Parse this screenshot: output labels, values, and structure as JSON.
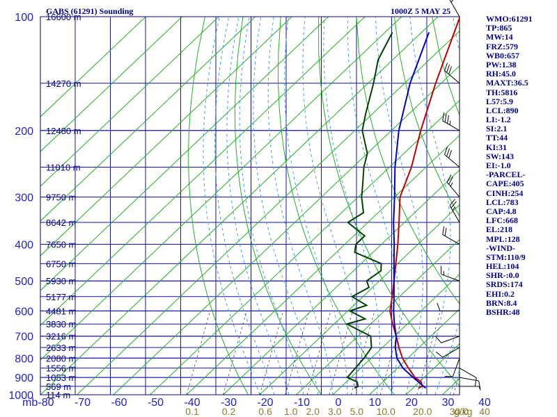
{
  "header": {
    "station_title": "GABS (61291) Sounding",
    "time_label": "1000Z  5 MAY 25"
  },
  "indices": [
    "WMO:61291",
    "TP:865",
    "MW:14",
    "FRZ:579",
    "WB0:657",
    "PW:1.38",
    "RH:45.0",
    "MAXT:36.5",
    "TH:5816",
    "L57:5.9",
    "LCL:890",
    "LI:-1.2",
    "SI:2.1",
    "TT:44",
    "KI:31",
    "SW:143",
    "EI:-1.0",
    "-PARCEL-",
    "CAPE:405",
    "CINH:254",
    "LCL:783",
    "CAP:4.8",
    "LFC:668",
    "EL:218",
    "MPL:128",
    "-WIND-",
    "STM:110/9",
    "HEL:104",
    "SHR-:0.0",
    "SRDS:174",
    "EHI:0.2",
    "BRN:8.4",
    "BSHR:48"
  ],
  "chart_data": {
    "type": "line",
    "title": "GABS (61291) Sounding",
    "subtitle": "1000Z  5 MAY 25",
    "xlabel": "",
    "ylabel": "mb",
    "x_range": [
      -80,
      40
    ],
    "pressure_range": [
      100,
      1000
    ],
    "log_pressure_axis": true,
    "grid": true,
    "pressure_ticks": [
      {
        "p": 100,
        "label": "100"
      },
      {
        "p": 200,
        "label": "200"
      },
      {
        "p": 300,
        "label": "300"
      },
      {
        "p": 400,
        "label": "400"
      },
      {
        "p": 500,
        "label": "500"
      },
      {
        "p": 600,
        "label": "600"
      },
      {
        "p": 700,
        "label": "700"
      },
      {
        "p": 800,
        "label": "800"
      },
      {
        "p": 900,
        "label": "900"
      },
      {
        "p": 1000,
        "label": "1000"
      }
    ],
    "x_axis_unit_label": "mb",
    "temp_ticks": [
      {
        "t": -80,
        "label": "-80"
      },
      {
        "t": -70,
        "label": "-70"
      },
      {
        "t": -60,
        "label": "-60"
      },
      {
        "t": -50,
        "label": "-50"
      },
      {
        "t": -40,
        "label": "-40"
      },
      {
        "t": -30,
        "label": "-30"
      },
      {
        "t": -20,
        "label": "-20"
      },
      {
        "t": -10,
        "label": "-10"
      },
      {
        "t": 0,
        "label": "0"
      },
      {
        "t": 10,
        "label": "10"
      },
      {
        "t": 20,
        "label": "20"
      },
      {
        "t": 30,
        "label": "30"
      },
      {
        "t": 40,
        "label": "40"
      }
    ],
    "height_labels": [
      {
        "p": 100,
        "label": "16600 m"
      },
      {
        "p": 150,
        "label": "14270 m"
      },
      {
        "p": 200,
        "label": "12480 m"
      },
      {
        "p": 250,
        "label": "11010 m"
      },
      {
        "p": 300,
        "label": "9750 m"
      },
      {
        "p": 350,
        "label": "8642 m"
      },
      {
        "p": 400,
        "label": "7650 m"
      },
      {
        "p": 450,
        "label": "6750 m"
      },
      {
        "p": 500,
        "label": "5930 m"
      },
      {
        "p": 550,
        "label": "5177 m"
      },
      {
        "p": 600,
        "label": "4481 m"
      },
      {
        "p": 650,
        "label": "3830 m"
      },
      {
        "p": 700,
        "label": "3216 m"
      },
      {
        "p": 750,
        "label": "2633 m"
      },
      {
        "p": 800,
        "label": "2080 m"
      },
      {
        "p": 850,
        "label": "1556 m"
      },
      {
        "p": 900,
        "label": "1053 m"
      },
      {
        "p": 950,
        "label": "569 m"
      },
      {
        "p": 1000,
        "label": "114 m"
      }
    ],
    "mixing_ratio_labels": [
      {
        "t": -40,
        "label": "0.1"
      },
      {
        "t": -30,
        "label": "0.2"
      },
      {
        "t": -20,
        "label": "0.6"
      },
      {
        "t": -13,
        "label": "1.0"
      },
      {
        "t": -7,
        "label": "2.0"
      },
      {
        "t": -1,
        "label": "3.0"
      },
      {
        "t": 5,
        "label": "5.0"
      },
      {
        "t": 13,
        "label": "10.0"
      },
      {
        "t": 23,
        "label": "20.0"
      },
      {
        "t": 33,
        "label": "30.0"
      },
      {
        "t": 40,
        "label": "40"
      }
    ],
    "mixing_ratio_unit": "g/kg",
    "series": [
      {
        "key": "temperature",
        "color": "#c00000",
        "points": [
          [
            960,
            21.5
          ],
          [
            950,
            22.0
          ],
          [
            925,
            20.5
          ],
          [
            900,
            17.5
          ],
          [
            850,
            13.0
          ],
          [
            800,
            8.5
          ],
          [
            750,
            4.5
          ],
          [
            700,
            0.5
          ],
          [
            650,
            -4.0
          ],
          [
            600,
            -8.5
          ],
          [
            550,
            -12.0
          ],
          [
            500,
            -16.0
          ],
          [
            450,
            -20.5
          ],
          [
            400,
            -25.5
          ],
          [
            350,
            -31.5
          ],
          [
            300,
            -38.5
          ],
          [
            250,
            -44.0
          ],
          [
            200,
            -52.0
          ],
          [
            150,
            -61.5
          ],
          [
            100,
            -74.0
          ]
        ]
      },
      {
        "key": "dewpoint",
        "color": "#004000",
        "points": [
          [
            960,
            4.0
          ],
          [
            950,
            4.5
          ],
          [
            925,
            3.0
          ],
          [
            900,
            -1.0
          ],
          [
            850,
            -1.5
          ],
          [
            800,
            -2.0
          ],
          [
            750,
            -3.0
          ],
          [
            700,
            -6.5
          ],
          [
            650,
            -16.5
          ],
          [
            630,
            -13.0
          ],
          [
            600,
            -19.5
          ],
          [
            580,
            -16.5
          ],
          [
            550,
            -23.0
          ],
          [
            520,
            -21.0
          ],
          [
            500,
            -23.5
          ],
          [
            470,
            -22.5
          ],
          [
            450,
            -24.5
          ],
          [
            420,
            -35.0
          ],
          [
            400,
            -37.0
          ],
          [
            380,
            -37.0
          ],
          [
            350,
            -45.5
          ],
          [
            330,
            -44.0
          ],
          [
            300,
            -49.0
          ],
          [
            280,
            -52.0
          ],
          [
            250,
            -57.0
          ],
          [
            230,
            -60.0
          ],
          [
            200,
            -68.0
          ],
          [
            180,
            -72.0
          ],
          [
            150,
            -78.5
          ],
          [
            130,
            -84.0
          ],
          [
            110,
            -88.0
          ]
        ]
      },
      {
        "key": "parcel",
        "color": "#0000c0",
        "points": [
          [
            960,
            23.5
          ],
          [
            900,
            17.0
          ],
          [
            850,
            11.5
          ],
          [
            800,
            7.0
          ],
          [
            750,
            3.5
          ],
          [
            700,
            0.5
          ],
          [
            650,
            -3.5
          ],
          [
            600,
            -7.5
          ],
          [
            550,
            -11.5
          ],
          [
            500,
            -16.0
          ],
          [
            450,
            -21.0
          ],
          [
            400,
            -26.5
          ],
          [
            350,
            -33.0
          ],
          [
            300,
            -40.0
          ],
          [
            250,
            -48.5
          ],
          [
            200,
            -58.0
          ],
          [
            150,
            -68.5
          ],
          [
            110,
            -78.0
          ]
        ]
      }
    ],
    "wind_barbs": [
      {
        "p": 950,
        "dir": 90,
        "spd": 5
      },
      {
        "p": 900,
        "dir": 100,
        "spd": 10
      },
      {
        "p": 850,
        "dir": 120,
        "spd": 10
      },
      {
        "p": 800,
        "dir": 200,
        "spd": 10
      },
      {
        "p": 750,
        "dir": 240,
        "spd": 10
      },
      {
        "p": 700,
        "dir": 250,
        "spd": 10
      },
      {
        "p": 600,
        "dir": 270,
        "spd": 10
      },
      {
        "p": 500,
        "dir": 290,
        "spd": 15
      },
      {
        "p": 400,
        "dir": 300,
        "spd": 20
      },
      {
        "p": 350,
        "dir": 330,
        "spd": 25
      },
      {
        "p": 300,
        "dir": 320,
        "spd": 25
      },
      {
        "p": 250,
        "dir": 310,
        "spd": 30
      },
      {
        "p": 200,
        "dir": 300,
        "spd": 35
      },
      {
        "p": 150,
        "dir": 310,
        "spd": 30
      },
      {
        "p": 100,
        "dir": 330,
        "spd": 20
      }
    ]
  }
}
